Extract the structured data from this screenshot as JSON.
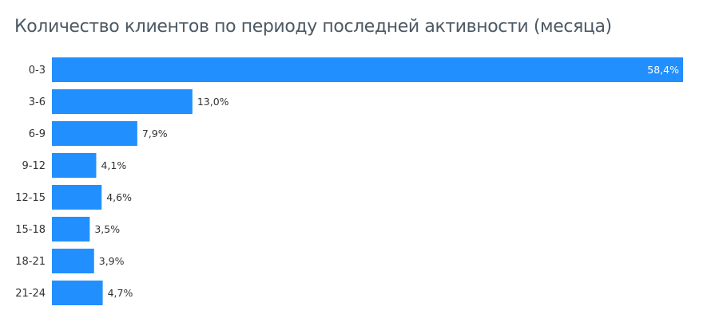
{
  "title": "Количество клиентов по периоду последней активности (месяца)",
  "colors": {
    "bar": "#228fff",
    "text": "#333333",
    "title": "#4d5964"
  },
  "chart_data": {
    "type": "bar",
    "orientation": "horizontal",
    "title": "Количество клиентов по периоду последней активности (месяца)",
    "categories": [
      "0-3",
      "3-6",
      "6-9",
      "9-12",
      "12-15",
      "15-18",
      "18-21",
      "21-24"
    ],
    "values": [
      58.4,
      13.0,
      7.9,
      4.1,
      4.6,
      3.5,
      3.9,
      4.7
    ],
    "value_labels": [
      "58,4%",
      "13,0%",
      "7,9%",
      "4,1%",
      "4,6%",
      "3,5%",
      "3,9%",
      "4,7%"
    ],
    "unit": "%",
    "xlim": [
      0,
      58.4
    ],
    "grid": false,
    "legend": "none"
  }
}
